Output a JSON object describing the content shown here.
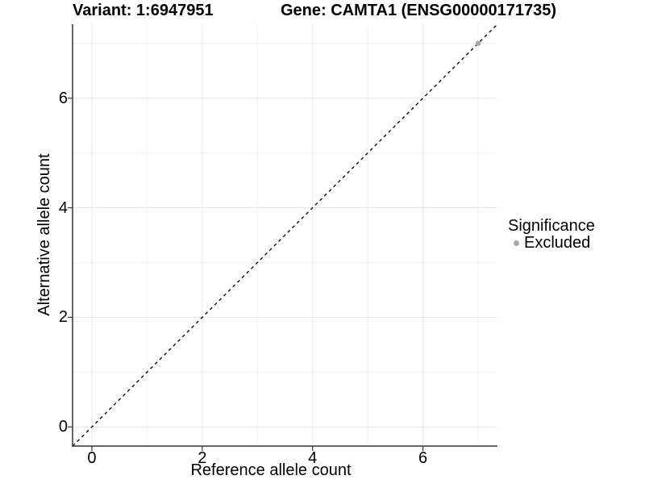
{
  "chart_data": {
    "type": "scatter",
    "title_left": "Variant: 1:6947951",
    "title_right": "Gene: CAMTA1 (ENSG00000171735)",
    "xlabel": "Reference allele count",
    "ylabel": "Alternative allele count",
    "xlim": [
      -0.35,
      7.35
    ],
    "ylim": [
      -0.35,
      7.35
    ],
    "x_major_ticks": [
      0,
      2,
      4,
      6
    ],
    "y_major_ticks": [
      0,
      2,
      4,
      6
    ],
    "x_minor_ticks": [
      1,
      3,
      5,
      7
    ],
    "y_minor_ticks": [
      1,
      3,
      5,
      7
    ],
    "grid": true,
    "reference_line": {
      "equation": "y = x",
      "style": "dashed",
      "from": [
        -0.35,
        -0.35
      ],
      "to": [
        7.35,
        7.35
      ],
      "color": "#000000"
    },
    "series": [
      {
        "name": "Excluded",
        "color": "#a8a8a8",
        "points": [
          [
            7,
            7
          ]
        ]
      }
    ],
    "legend": {
      "position": "right",
      "title": "Significance",
      "items": [
        {
          "label": "Excluded",
          "color": "#a8a8a8"
        }
      ]
    }
  },
  "colors": {
    "background": "#ffffff",
    "axis_line": "#333333",
    "tick_mark": "#333333",
    "grid_major": "#e7e7e7",
    "grid_minor": "#f1f1f1",
    "reference_line": "#000000",
    "text": "#000000",
    "point": "#a8a8a8"
  }
}
